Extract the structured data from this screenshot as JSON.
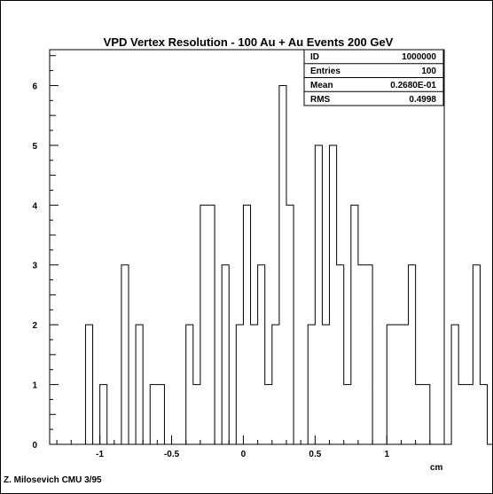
{
  "chart_data": {
    "type": "bar",
    "title": "VPD Vertex Resolution - 100 Au + Au Events 200 GeV",
    "xlabel": "cm",
    "ylabel": "",
    "xlim": [
      -1.35,
      1.4
    ],
    "ylim": [
      0,
      6.6
    ],
    "bin_width": 0.05,
    "bin_edges_start": -1.1,
    "values": [
      2,
      0,
      1,
      0,
      0,
      3,
      0,
      2,
      0,
      1,
      1,
      0,
      0,
      0,
      2,
      1,
      4,
      4,
      0,
      3,
      0,
      2,
      4,
      2,
      3,
      1,
      2,
      6,
      4,
      0,
      0,
      2,
      5,
      2,
      5,
      3,
      1,
      4,
      3,
      3,
      0,
      0,
      2,
      2,
      2,
      3,
      1,
      1,
      0,
      0,
      0,
      2,
      1,
      1,
      3,
      1,
      0,
      0,
      0,
      0,
      0,
      1
    ],
    "xticks": [
      "-1",
      "-0.5",
      "0",
      "0.5",
      "1"
    ],
    "xtick_values": [
      -1,
      -0.5,
      0,
      0.5,
      1
    ],
    "yticks": [
      "0",
      "1",
      "2",
      "3",
      "4",
      "5",
      "6"
    ],
    "ytick_values": [
      0,
      1,
      2,
      3,
      4,
      5,
      6
    ],
    "grid": false,
    "stats": {
      "id_label": "ID",
      "id_value": "1000000",
      "entries_label": "Entries",
      "entries_value": "100",
      "mean_label": "Mean",
      "mean_value": "0.2680E-01",
      "rms_label": "RMS",
      "rms_value": "0.4998"
    }
  },
  "credit": "Z. Milosevich CMU 3/95"
}
